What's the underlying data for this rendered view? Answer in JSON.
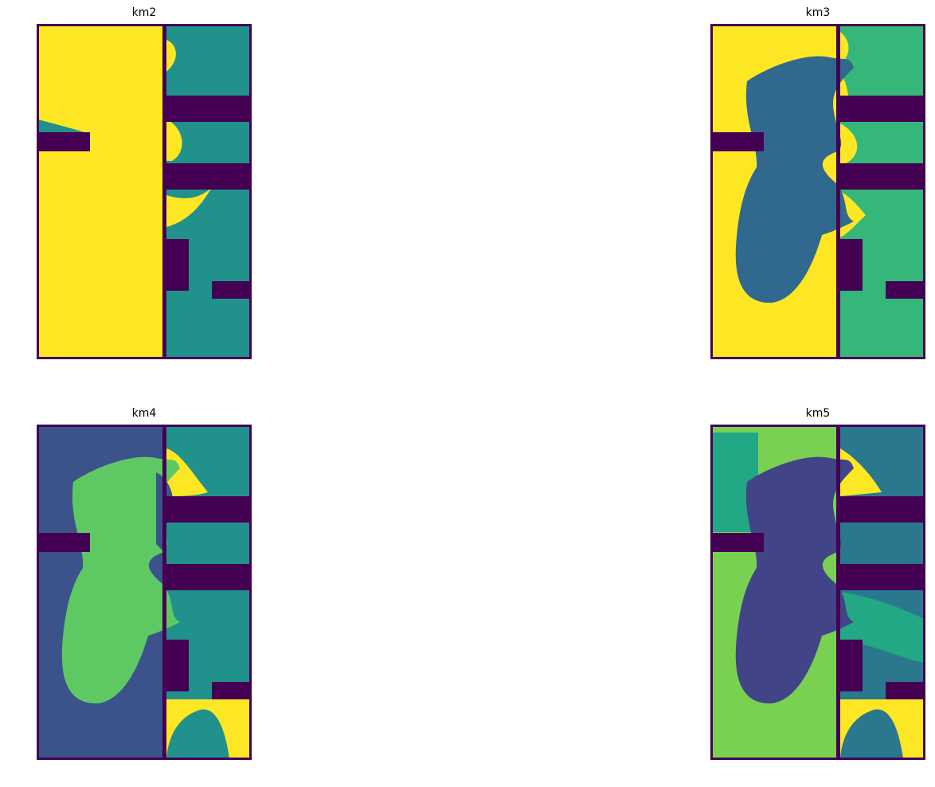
{
  "colormap": "viridis",
  "palette": {
    "c0": "#440154",
    "c1": "#414487",
    "c2": "#2a788e",
    "c3": "#22a884",
    "c4": "#7ad151",
    "c5": "#fde725",
    "km2_region": "#21918c",
    "km3_region1": "#31688e",
    "km3_region2": "#35b779",
    "km4_region1": "#3b528b",
    "km4_region3": "#5ec962"
  },
  "chart_data": [
    {
      "type": "heatmap",
      "title": "km2",
      "clusters": 2,
      "axes": "off"
    },
    {
      "type": "heatmap",
      "title": "km3",
      "clusters": 3,
      "axes": "off"
    },
    {
      "type": "heatmap",
      "title": "km4",
      "clusters": 4,
      "axes": "off"
    },
    {
      "type": "heatmap",
      "title": "km5",
      "clusters": 5,
      "axes": "off"
    }
  ]
}
